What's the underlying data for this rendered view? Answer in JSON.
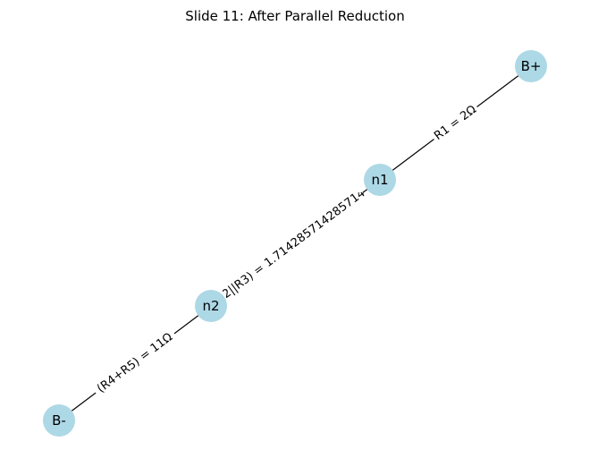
{
  "title": "Slide 11: After Parallel Reduction",
  "colors": {
    "node_fill": "#add8e6",
    "edge": "#000000",
    "label_background": "#ffffff"
  },
  "nodes": [
    {
      "id": "bplus",
      "label": "B+"
    },
    {
      "id": "n1",
      "label": "n1"
    },
    {
      "id": "n2",
      "label": "n2"
    },
    {
      "id": "bminus",
      "label": "B-"
    }
  ],
  "edges": [
    {
      "from": "bplus",
      "to": "n1",
      "label": "R1 = 2Ω"
    },
    {
      "from": "n1",
      "to": "n2",
      "label": "(R2||R3) = 1.7142857142857144Ω"
    },
    {
      "from": "n2",
      "to": "bminus",
      "label": "(R4+R5) = 11Ω"
    }
  ]
}
